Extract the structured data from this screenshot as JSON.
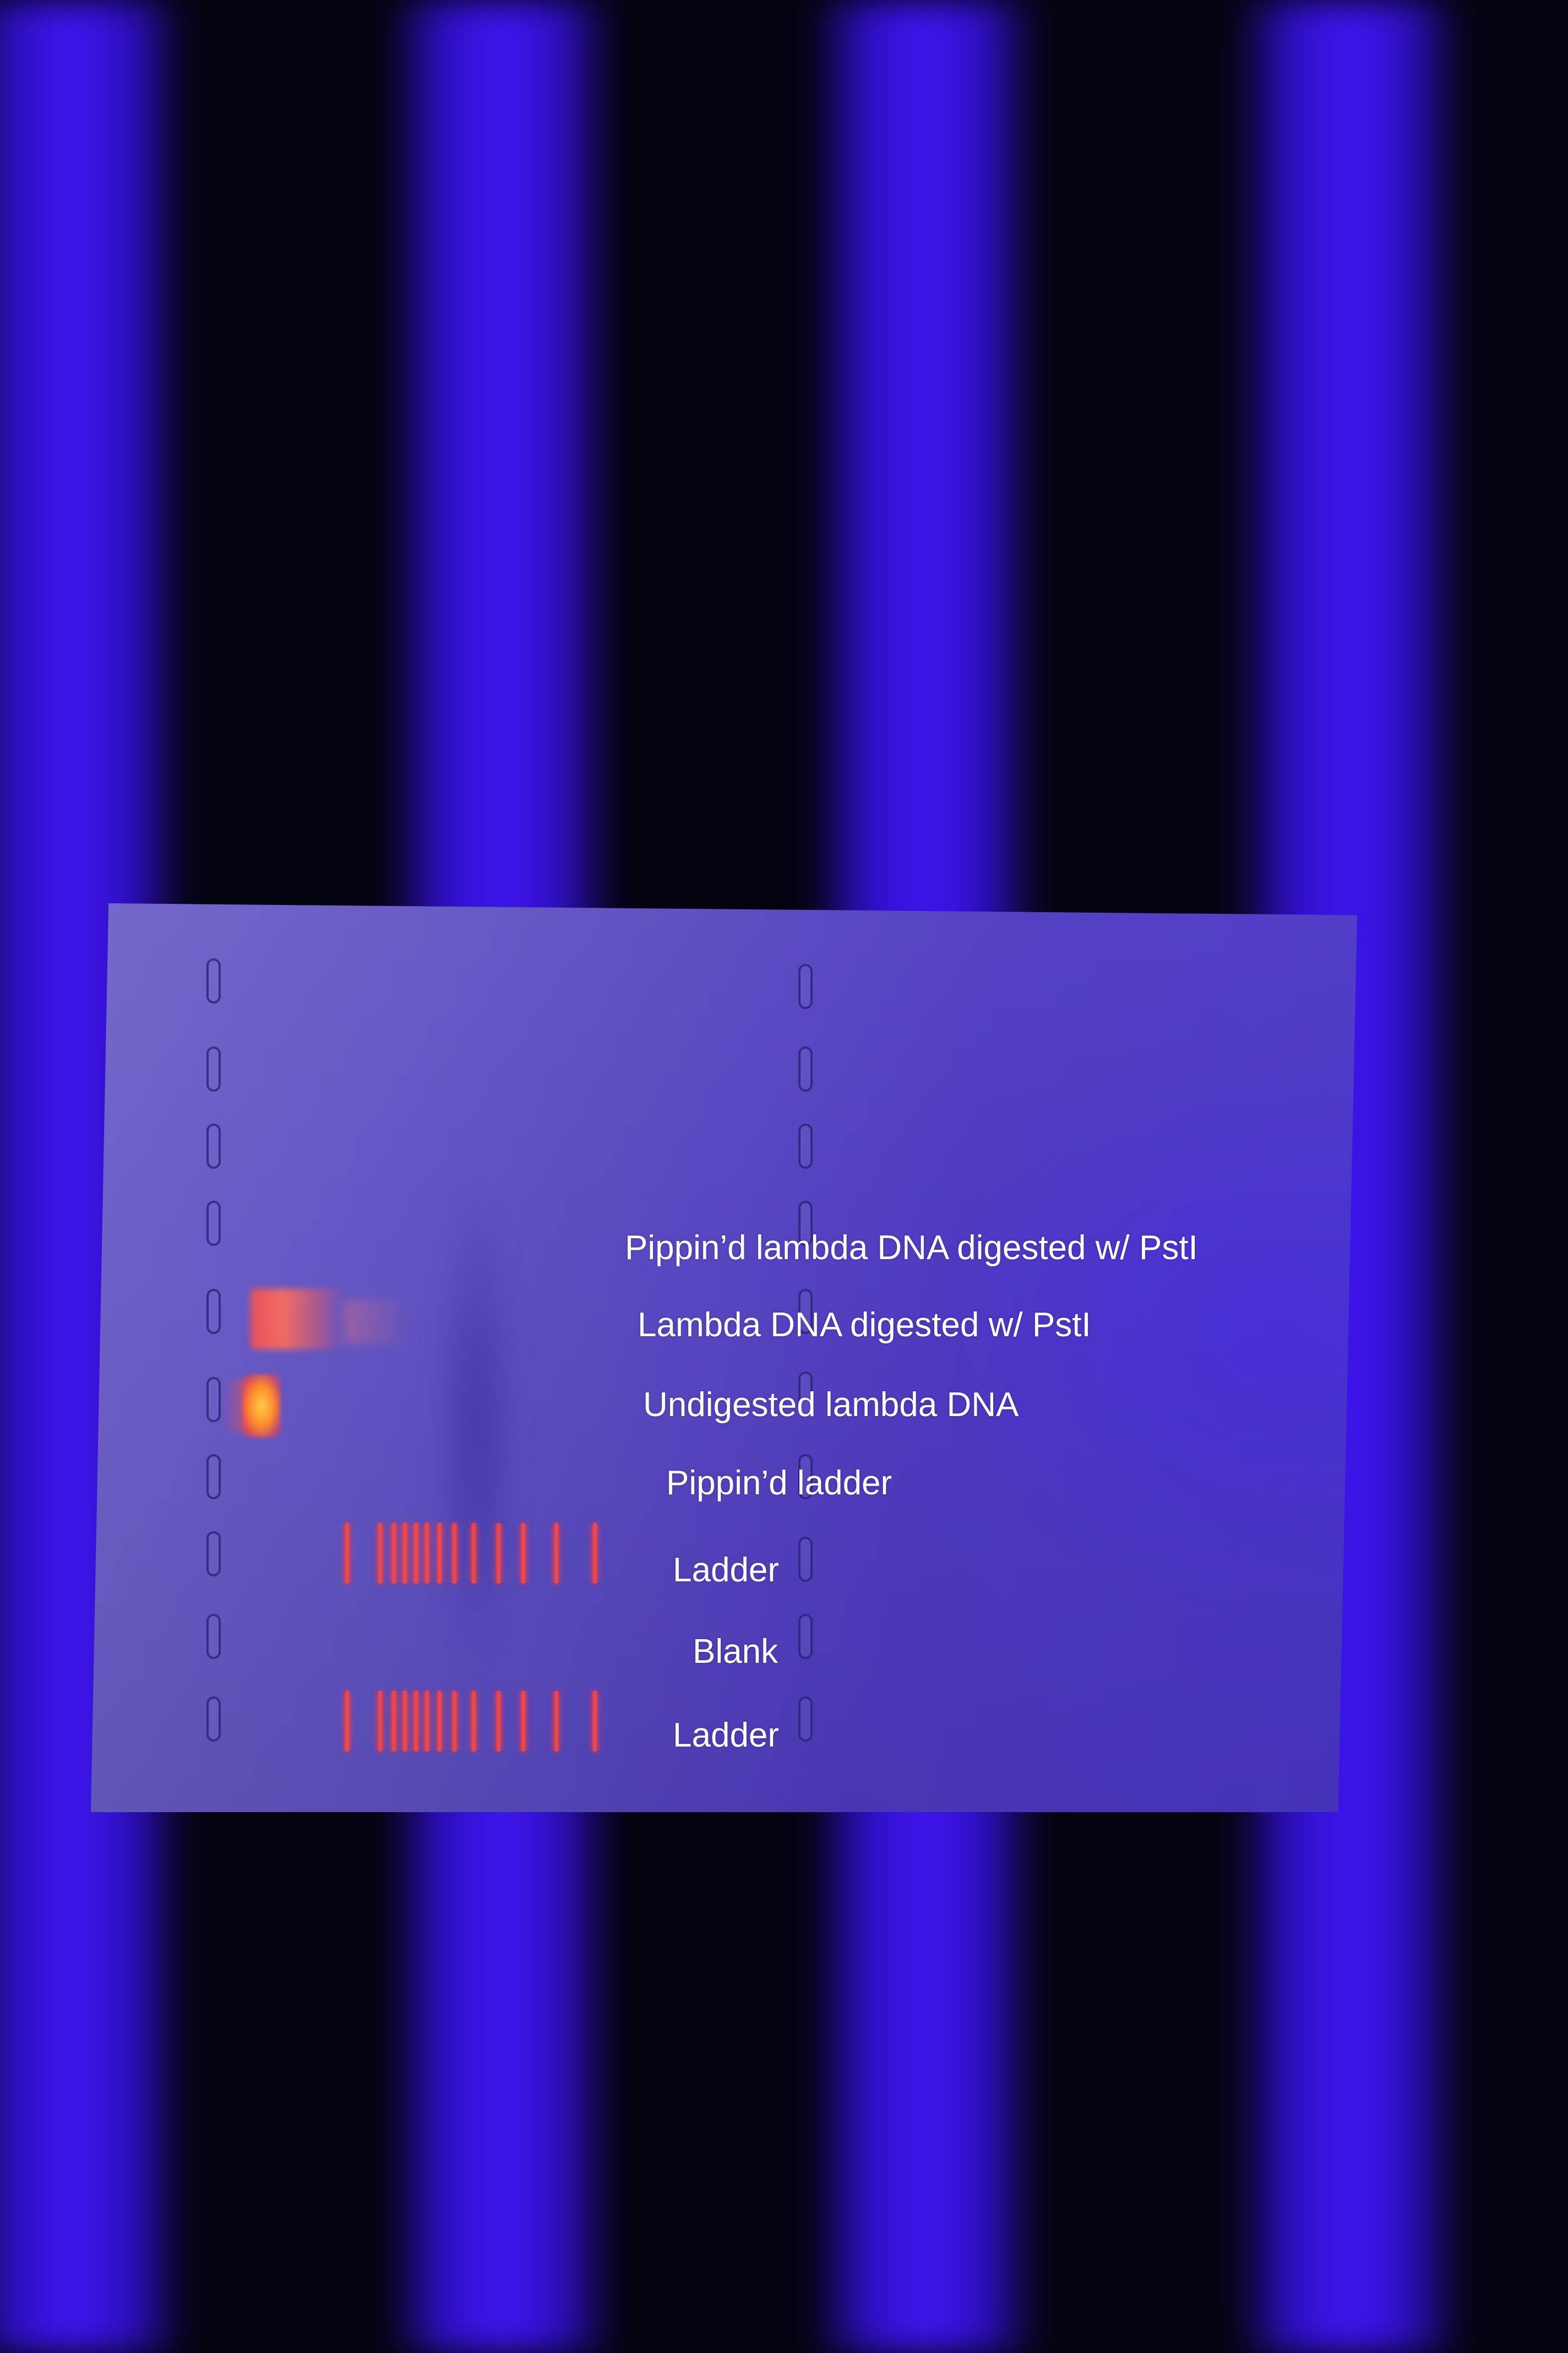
{
  "photo": {
    "subject": "agarose gel under UV transilluminator",
    "colors": {
      "uv_light": "#3e16f0",
      "gel": "#5d4fc0",
      "band_red": "#ff4a3a",
      "band_orange": "#ffcf4a",
      "label_text": "#ffffff"
    }
  },
  "lane_labels": [
    "Pippin’d lambda DNA digested w/ PstI",
    "Lambda DNA digested w/ PstI",
    "Undigested lambda DNA",
    "Pippin’d ladder",
    "Ladder",
    "Blank",
    "Ladder"
  ]
}
